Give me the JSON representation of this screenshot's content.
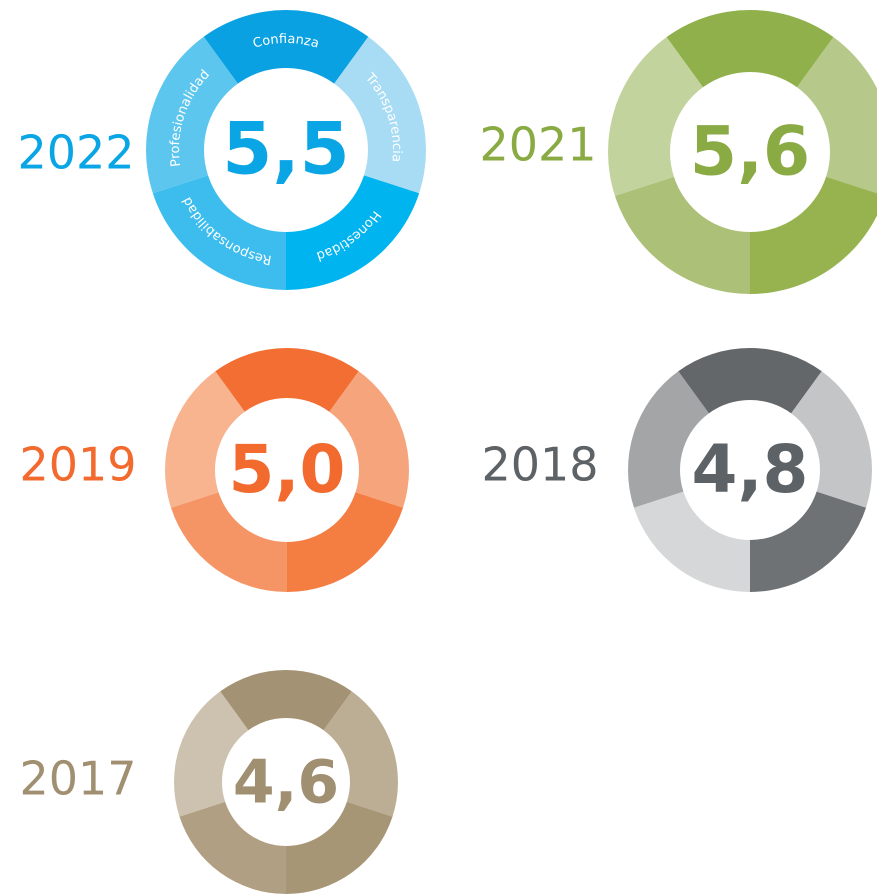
{
  "donuts": [
    {
      "year": "2022",
      "score": "5,5",
      "segments": [
        "Confianza",
        "Transparencia",
        "Honestidad",
        "Responsabilidad",
        "Profesionalidad"
      ]
    },
    {
      "year": "2021",
      "score": "5,6"
    },
    {
      "year": "2019",
      "score": "5,0"
    },
    {
      "year": "2018",
      "score": "4,8"
    },
    {
      "year": "2017",
      "score": "4,6"
    }
  ]
}
